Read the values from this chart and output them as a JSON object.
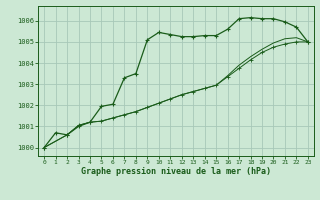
{
  "title": "Graphe pression niveau de la mer (hPa)",
  "bg_color": "#cce8d4",
  "grid_color": "#a8c8b8",
  "line_color": "#1a5c1a",
  "xlim": [
    -0.5,
    23.5
  ],
  "ylim": [
    999.6,
    1006.7
  ],
  "yticks": [
    1000,
    1001,
    1002,
    1003,
    1004,
    1005,
    1006
  ],
  "xticks": [
    0,
    1,
    2,
    3,
    4,
    5,
    6,
    7,
    8,
    9,
    10,
    11,
    12,
    13,
    14,
    15,
    16,
    17,
    18,
    19,
    20,
    21,
    22,
    23
  ],
  "series1_x": [
    0,
    1,
    2,
    3,
    4,
    5,
    6,
    7,
    8,
    9,
    10,
    11,
    12,
    13,
    14,
    15,
    16,
    17,
    18,
    19,
    20,
    21,
    22,
    23
  ],
  "series1_y": [
    1000.0,
    1000.7,
    1000.6,
    1001.0,
    1001.2,
    1001.95,
    1002.05,
    1003.3,
    1003.5,
    1005.1,
    1005.45,
    1005.35,
    1005.25,
    1005.25,
    1005.3,
    1005.3,
    1005.6,
    1006.1,
    1006.15,
    1006.1,
    1006.1,
    1005.95,
    1005.7,
    1005.0
  ],
  "series2_x": [
    0,
    2,
    3,
    4,
    5,
    6,
    7,
    8,
    9,
    10,
    11,
    12,
    13,
    14,
    15,
    16,
    17,
    18,
    19,
    20,
    21,
    22,
    23
  ],
  "series2_y": [
    1000.0,
    1000.6,
    1001.05,
    1001.2,
    1001.25,
    1001.4,
    1001.55,
    1001.7,
    1001.9,
    1002.1,
    1002.3,
    1002.5,
    1002.65,
    1002.8,
    1002.95,
    1003.35,
    1003.75,
    1004.15,
    1004.5,
    1004.75,
    1004.9,
    1005.0,
    1005.0
  ],
  "series3_x": [
    0,
    2,
    3,
    4,
    5,
    6,
    7,
    8,
    9,
    10,
    11,
    12,
    13,
    14,
    15,
    16,
    17,
    18,
    19,
    20,
    21,
    22,
    23
  ],
  "series3_y": [
    1000.0,
    1000.6,
    1001.05,
    1001.2,
    1001.25,
    1001.4,
    1001.55,
    1001.7,
    1001.9,
    1002.1,
    1002.3,
    1002.5,
    1002.65,
    1002.8,
    1002.95,
    1003.4,
    1003.9,
    1004.3,
    1004.65,
    1004.95,
    1005.15,
    1005.2,
    1005.0
  ]
}
